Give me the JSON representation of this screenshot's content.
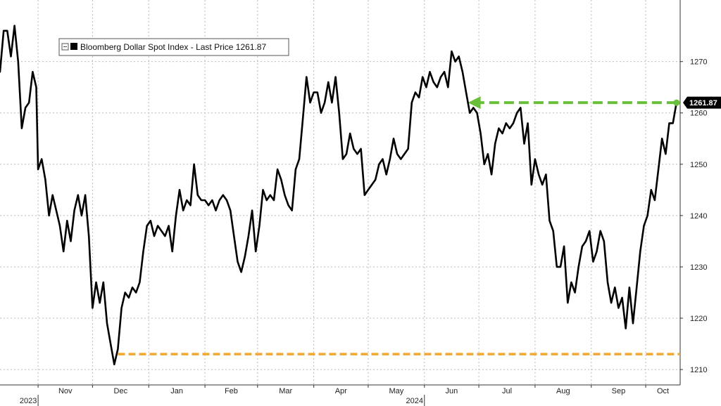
{
  "chart_data": {
    "type": "line",
    "title": "",
    "xlabel": "",
    "ylabel": "",
    "ylim": [
      1207,
      1282
    ],
    "y_ticks": [
      1210,
      1220,
      1230,
      1240,
      1250,
      1260,
      1270
    ],
    "y_axis_side": "right",
    "x_months": [
      {
        "label": "Nov",
        "date": "2023-11-01"
      },
      {
        "label": "Dec",
        "date": "2023-12-01"
      },
      {
        "label": "Jan",
        "date": "2024-01-01"
      },
      {
        "label": "Feb",
        "date": "2024-02-01"
      },
      {
        "label": "Mar",
        "date": "2024-03-01"
      },
      {
        "label": "Apr",
        "date": "2024-04-01"
      },
      {
        "label": "May",
        "date": "2024-05-01"
      },
      {
        "label": "Jun",
        "date": "2024-06-01"
      },
      {
        "label": "Jul",
        "date": "2024-07-01"
      },
      {
        "label": "Aug",
        "date": "2024-08-01"
      },
      {
        "label": "Sep",
        "date": "2024-09-01"
      },
      {
        "label": "Oct",
        "date": "2024-10-01"
      }
    ],
    "years": [
      {
        "label": "2023",
        "date": "2023-11-01"
      },
      {
        "label": "2024",
        "date": "2024-06-01"
      }
    ],
    "xlim": [
      "2023-10-11",
      "2024-10-20"
    ],
    "grid": true,
    "legend": {
      "placement": "top-left",
      "label": "Bloomberg Dollar Spot Index - Last Price 1261.87"
    },
    "last_price_label": "1261.87",
    "colors": {
      "line": "#000000",
      "green": "#6abf3a",
      "orange": "#f0a830",
      "grid": "#bbbbbb"
    },
    "series": [
      {
        "values": [
          [
            "2023-10-11",
            1268
          ],
          [
            "2023-10-13",
            1276
          ],
          [
            "2023-10-15",
            1276
          ],
          [
            "2023-10-17",
            1271
          ],
          [
            "2023-10-19",
            1277
          ],
          [
            "2023-10-21",
            1270
          ],
          [
            "2023-10-23",
            1257
          ],
          [
            "2023-10-25",
            1261
          ],
          [
            "2023-10-27",
            1262
          ],
          [
            "2023-10-29",
            1268
          ],
          [
            "2023-10-31",
            1265
          ],
          [
            "2023-11-01",
            1249
          ],
          [
            "2023-11-03",
            1251
          ],
          [
            "2023-11-05",
            1247
          ],
          [
            "2023-11-07",
            1240
          ],
          [
            "2023-11-09",
            1244
          ],
          [
            "2023-11-11",
            1241
          ],
          [
            "2023-11-13",
            1238
          ],
          [
            "2023-11-15",
            1233
          ],
          [
            "2023-11-17",
            1239
          ],
          [
            "2023-11-19",
            1235
          ],
          [
            "2023-11-21",
            1241
          ],
          [
            "2023-11-23",
            1244
          ],
          [
            "2023-11-25",
            1240
          ],
          [
            "2023-11-27",
            1244
          ],
          [
            "2023-11-29",
            1236
          ],
          [
            "2023-12-01",
            1222
          ],
          [
            "2023-12-03",
            1227
          ],
          [
            "2023-12-05",
            1223
          ],
          [
            "2023-12-07",
            1227
          ],
          [
            "2023-12-09",
            1219
          ],
          [
            "2023-12-11",
            1215
          ],
          [
            "2023-12-13",
            1211
          ],
          [
            "2023-12-15",
            1214
          ],
          [
            "2023-12-17",
            1222
          ],
          [
            "2023-12-19",
            1225
          ],
          [
            "2023-12-21",
            1224
          ],
          [
            "2023-12-23",
            1226
          ],
          [
            "2023-12-25",
            1225
          ],
          [
            "2023-12-27",
            1227
          ],
          [
            "2023-12-29",
            1233
          ],
          [
            "2023-12-31",
            1238
          ],
          [
            "2024-01-02",
            1239
          ],
          [
            "2024-01-04",
            1236
          ],
          [
            "2024-01-06",
            1238
          ],
          [
            "2024-01-08",
            1237
          ],
          [
            "2024-01-10",
            1236
          ],
          [
            "2024-01-12",
            1238
          ],
          [
            "2024-01-14",
            1233
          ],
          [
            "2024-01-16",
            1240
          ],
          [
            "2024-01-18",
            1245
          ],
          [
            "2024-01-20",
            1241
          ],
          [
            "2024-01-22",
            1243
          ],
          [
            "2024-01-24",
            1242
          ],
          [
            "2024-01-26",
            1250
          ],
          [
            "2024-01-28",
            1244
          ],
          [
            "2024-01-30",
            1243
          ],
          [
            "2024-02-01",
            1243
          ],
          [
            "2024-02-03",
            1242
          ],
          [
            "2024-02-05",
            1243
          ],
          [
            "2024-02-07",
            1241
          ],
          [
            "2024-02-09",
            1243
          ],
          [
            "2024-02-11",
            1244
          ],
          [
            "2024-02-13",
            1243
          ],
          [
            "2024-02-15",
            1241
          ],
          [
            "2024-02-17",
            1236
          ],
          [
            "2024-02-19",
            1231
          ],
          [
            "2024-02-21",
            1229
          ],
          [
            "2024-02-23",
            1232
          ],
          [
            "2024-02-25",
            1236
          ],
          [
            "2024-02-27",
            1241
          ],
          [
            "2024-02-29",
            1233
          ],
          [
            "2024-03-02",
            1238
          ],
          [
            "2024-03-04",
            1245
          ],
          [
            "2024-03-06",
            1243
          ],
          [
            "2024-03-08",
            1244
          ],
          [
            "2024-03-10",
            1243
          ],
          [
            "2024-03-12",
            1249
          ],
          [
            "2024-03-14",
            1247
          ],
          [
            "2024-03-16",
            1244
          ],
          [
            "2024-03-18",
            1242
          ],
          [
            "2024-03-20",
            1241
          ],
          [
            "2024-03-22",
            1249
          ],
          [
            "2024-03-24",
            1251
          ],
          [
            "2024-03-26",
            1259
          ],
          [
            "2024-03-28",
            1267
          ],
          [
            "2024-03-30",
            1262
          ],
          [
            "2024-04-01",
            1264
          ],
          [
            "2024-04-03",
            1264
          ],
          [
            "2024-04-05",
            1260
          ],
          [
            "2024-04-07",
            1262
          ],
          [
            "2024-04-09",
            1266
          ],
          [
            "2024-04-11",
            1262
          ],
          [
            "2024-04-13",
            1267
          ],
          [
            "2024-04-15",
            1260
          ],
          [
            "2024-04-17",
            1251
          ],
          [
            "2024-04-19",
            1252
          ],
          [
            "2024-04-21",
            1256
          ],
          [
            "2024-04-23",
            1253
          ],
          [
            "2024-04-25",
            1252
          ],
          [
            "2024-04-27",
            1253
          ],
          [
            "2024-04-29",
            1244
          ],
          [
            "2024-05-01",
            1245
          ],
          [
            "2024-05-03",
            1246
          ],
          [
            "2024-05-05",
            1247
          ],
          [
            "2024-05-07",
            1250
          ],
          [
            "2024-05-09",
            1251
          ],
          [
            "2024-05-11",
            1248
          ],
          [
            "2024-05-13",
            1251
          ],
          [
            "2024-05-15",
            1255
          ],
          [
            "2024-05-17",
            1252
          ],
          [
            "2024-05-19",
            1251
          ],
          [
            "2024-05-21",
            1252
          ],
          [
            "2024-05-23",
            1253
          ],
          [
            "2024-05-25",
            1262
          ],
          [
            "2024-05-27",
            1264
          ],
          [
            "2024-05-29",
            1263
          ],
          [
            "2024-05-31",
            1267
          ],
          [
            "2024-06-02",
            1265
          ],
          [
            "2024-06-04",
            1268
          ],
          [
            "2024-06-06",
            1266
          ],
          [
            "2024-06-08",
            1265
          ],
          [
            "2024-06-10",
            1267
          ],
          [
            "2024-06-12",
            1268
          ],
          [
            "2024-06-14",
            1265
          ],
          [
            "2024-06-16",
            1272
          ],
          [
            "2024-06-18",
            1270
          ],
          [
            "2024-06-20",
            1271
          ],
          [
            "2024-06-22",
            1268
          ],
          [
            "2024-06-24",
            1264
          ],
          [
            "2024-06-26",
            1260
          ],
          [
            "2024-06-28",
            1261
          ],
          [
            "2024-06-30",
            1260
          ],
          [
            "2024-07-02",
            1256
          ],
          [
            "2024-07-04",
            1250
          ],
          [
            "2024-07-06",
            1252
          ],
          [
            "2024-07-08",
            1248
          ],
          [
            "2024-07-10",
            1254
          ],
          [
            "2024-07-12",
            1257
          ],
          [
            "2024-07-14",
            1256
          ],
          [
            "2024-07-16",
            1258
          ],
          [
            "2024-07-18",
            1257
          ],
          [
            "2024-07-20",
            1258
          ],
          [
            "2024-07-22",
            1260
          ],
          [
            "2024-07-24",
            1261
          ],
          [
            "2024-07-26",
            1254
          ],
          [
            "2024-07-28",
            1258
          ],
          [
            "2024-07-30",
            1246
          ],
          [
            "2024-08-01",
            1251
          ],
          [
            "2024-08-03",
            1248
          ],
          [
            "2024-08-05",
            1246
          ],
          [
            "2024-08-07",
            1248
          ],
          [
            "2024-08-09",
            1239
          ],
          [
            "2024-08-11",
            1237
          ],
          [
            "2024-08-13",
            1230
          ],
          [
            "2024-08-15",
            1230
          ],
          [
            "2024-08-17",
            1234
          ],
          [
            "2024-08-19",
            1223
          ],
          [
            "2024-08-21",
            1227
          ],
          [
            "2024-08-23",
            1225
          ],
          [
            "2024-08-25",
            1230
          ],
          [
            "2024-08-27",
            1234
          ],
          [
            "2024-08-29",
            1235
          ],
          [
            "2024-08-31",
            1237
          ],
          [
            "2024-09-02",
            1231
          ],
          [
            "2024-09-04",
            1233
          ],
          [
            "2024-09-06",
            1237
          ],
          [
            "2024-09-08",
            1235
          ],
          [
            "2024-09-10",
            1227
          ],
          [
            "2024-09-12",
            1223
          ],
          [
            "2024-09-14",
            1226
          ],
          [
            "2024-09-16",
            1222
          ],
          [
            "2024-09-18",
            1224
          ],
          [
            "2024-09-20",
            1218
          ],
          [
            "2024-09-22",
            1226
          ],
          [
            "2024-09-24",
            1219
          ],
          [
            "2024-09-26",
            1226
          ],
          [
            "2024-09-28",
            1233
          ],
          [
            "2024-09-30",
            1238
          ],
          [
            "2024-10-02",
            1240
          ],
          [
            "2024-10-04",
            1245
          ],
          [
            "2024-10-06",
            1243
          ],
          [
            "2024-10-08",
            1249
          ],
          [
            "2024-10-10",
            1255
          ],
          [
            "2024-10-12",
            1252
          ],
          [
            "2024-10-14",
            1258
          ],
          [
            "2024-10-16",
            1258
          ],
          [
            "2024-10-18",
            1262
          ]
        ]
      }
    ],
    "annotations": [
      {
        "kind": "dashed-arrow",
        "color": "green",
        "from": [
          "2024-10-18",
          1262
        ],
        "to": [
          "2024-06-25",
          1262
        ]
      },
      {
        "kind": "dashed-line",
        "color": "orange",
        "from": [
          "2023-12-15",
          1213
        ],
        "to": [
          "2024-10-20",
          1213
        ]
      }
    ]
  }
}
